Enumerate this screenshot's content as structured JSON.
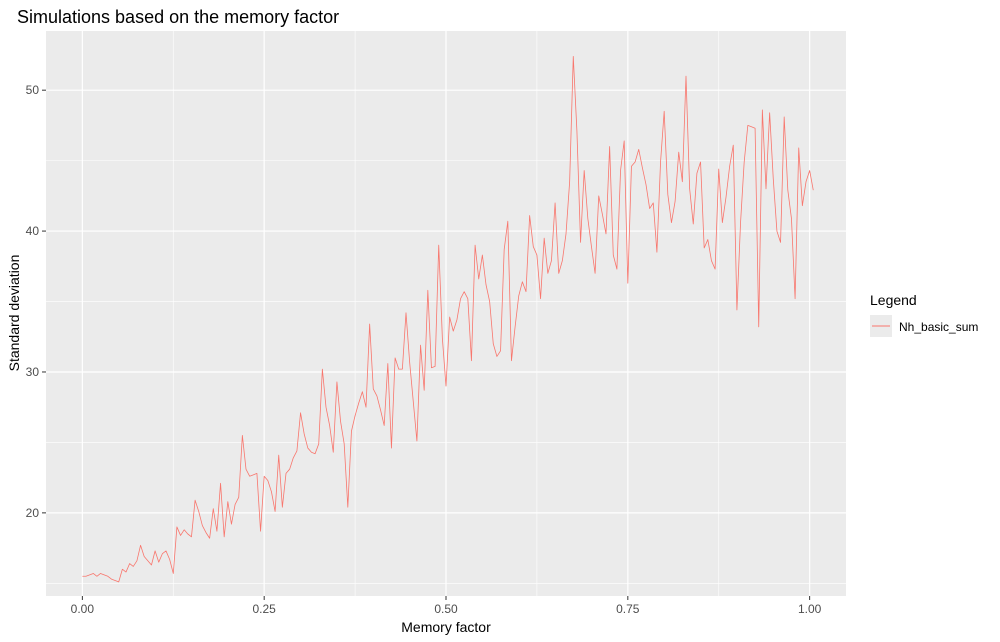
{
  "chart_data": {
    "type": "line",
    "title": "Simulations based on the memory factor",
    "xlabel": "Memory factor",
    "ylabel": "Standard deviation",
    "xlim": [
      -0.05,
      1.05
    ],
    "ylim": [
      14.1,
      54.2
    ],
    "x_ticks": [
      {
        "value": 0.0,
        "label": "0.00"
      },
      {
        "value": 0.25,
        "label": "0.25"
      },
      {
        "value": 0.5,
        "label": "0.50"
      },
      {
        "value": 0.75,
        "label": "0.75"
      },
      {
        "value": 1.0,
        "label": "1.00"
      }
    ],
    "y_ticks": [
      {
        "value": 20,
        "label": "20"
      },
      {
        "value": 30,
        "label": "30"
      },
      {
        "value": 40,
        "label": "40"
      },
      {
        "value": 50,
        "label": "50"
      }
    ],
    "grid": true,
    "legend": {
      "title": "Legend",
      "position": "right"
    },
    "series": [
      {
        "name": "Nh_basic_sum",
        "color": "#F8766D",
        "x_start": 0.0,
        "x_step": 0.005,
        "values": [
          15.5,
          15.5,
          15.6,
          15.7,
          15.5,
          15.7,
          15.6,
          15.5,
          15.3,
          15.2,
          15.1,
          16.0,
          15.8,
          16.4,
          16.2,
          16.6,
          17.7,
          16.9,
          16.6,
          16.3,
          17.3,
          16.5,
          17.1,
          17.3,
          16.7,
          15.7,
          19.0,
          18.4,
          18.8,
          18.5,
          18.3,
          20.9,
          20.1,
          19.1,
          18.6,
          18.2,
          20.3,
          18.7,
          22.1,
          18.3,
          20.8,
          19.2,
          20.6,
          21.1,
          25.5,
          23.1,
          22.6,
          22.7,
          22.8,
          18.7,
          22.6,
          22.3,
          21.5,
          20.1,
          24.1,
          20.4,
          22.8,
          23.1,
          23.9,
          24.4,
          27.1,
          25.6,
          24.6,
          24.3,
          24.2,
          24.9,
          30.2,
          27.5,
          26.2,
          24.3,
          29.3,
          26.5,
          24.9,
          20.4,
          25.8,
          26.9,
          27.8,
          28.6,
          27.5,
          33.4,
          28.8,
          28.3,
          27.3,
          26.2,
          30.6,
          24.6,
          31.0,
          30.2,
          30.2,
          34.2,
          30.7,
          27.9,
          25.1,
          31.9,
          28.7,
          35.8,
          30.3,
          30.4,
          39.0,
          32.4,
          29.0,
          33.9,
          32.9,
          33.7,
          35.2,
          35.7,
          35.2,
          30.8,
          39.0,
          36.6,
          38.3,
          36.2,
          35.0,
          32.0,
          31.1,
          31.5,
          38.7,
          40.7,
          30.8,
          33.2,
          35.4,
          36.4,
          35.7,
          41.1,
          38.9,
          38.3,
          35.2,
          39.5,
          37.0,
          37.9,
          42.0,
          37.0,
          37.9,
          39.8,
          43.5,
          52.4,
          47.1,
          39.2,
          44.3,
          40.9,
          38.9,
          37.0,
          42.5,
          41.2,
          39.8,
          46.0,
          38.3,
          37.3,
          44.3,
          46.4,
          36.3,
          44.6,
          44.9,
          45.8,
          44.5,
          43.3,
          41.6,
          42.0,
          38.5,
          44.9,
          48.5,
          42.6,
          40.6,
          42.1,
          45.6,
          43.5,
          51.0,
          43.0,
          40.5,
          44.1,
          44.9,
          38.8,
          39.4,
          37.9,
          37.3,
          44.4,
          40.6,
          42.4,
          44.6,
          46.1,
          34.4,
          40.6,
          44.9,
          47.5,
          47.4,
          47.3,
          33.2,
          48.6,
          43.0,
          48.4,
          43.7,
          40.0,
          39.2,
          48.1,
          42.9,
          40.9,
          35.2,
          45.9,
          41.8,
          43.5,
          44.3,
          42.9
        ]
      }
    ]
  }
}
